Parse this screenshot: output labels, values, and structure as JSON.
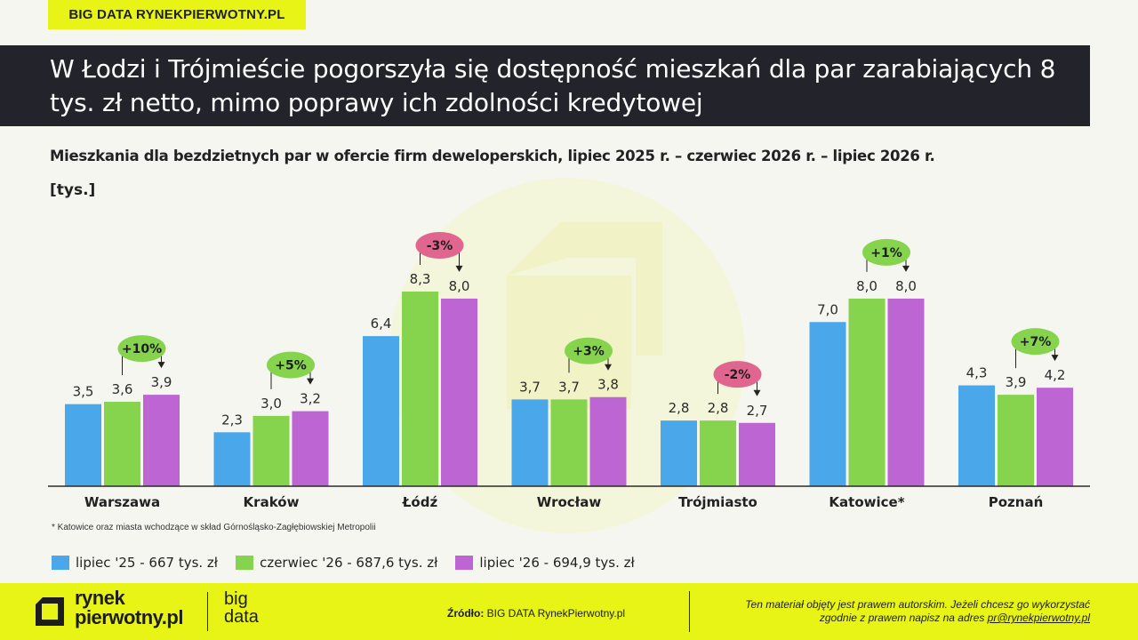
{
  "tag": "BIG DATA RYNEKPIERWOTNY.PL",
  "header": {
    "title": "W Łodzi i Trójmieście pogorszyła się dostępność mieszkań dla par zarabiających 8 tys. zł netto, mimo poprawy ich zdolności kredytowej"
  },
  "subtitle": "Mieszkania dla bezdzietnych par w ofercie firm deweloperskich, lipiec 2025 r. – czerwiec 2026 r. – lipiec 2026 r.",
  "unit": "[tys.]",
  "footnote": "* Katowice oraz miasta wchodzące w skład Górnośląsko-Zagłębiowskiej Metropolii",
  "colors": {
    "series1": "#4aa8ea",
    "series2": "#86d34e",
    "series3": "#bd66d3",
    "positive_badge": "#86d34e",
    "negative_badge": "#e0668f",
    "brand_yellow": "#e8f416",
    "header_bg": "#22232b"
  },
  "chart_data": {
    "type": "bar",
    "title": "Mieszkania dla bezdzietnych par w ofercie firm deweloperskich, lipiec 2025 r. – czerwiec 2026 r. – lipiec 2026 r.",
    "ylabel": "[tys.]",
    "ylim": [
      0,
      8.3
    ],
    "grid": false,
    "legend_position": "bottom-left",
    "categories": [
      "Warszawa",
      "Kraków",
      "Łódź",
      "Wrocław",
      "Trójmiasto",
      "Katowice*",
      "Poznań"
    ],
    "series": [
      {
        "name": "lipiec '25 - 667 tys. zł",
        "values": [
          3.5,
          2.3,
          6.4,
          3.7,
          2.8,
          7.0,
          4.3
        ],
        "labels": [
          "3,5",
          "2,3",
          "6,4",
          "3,7",
          "2,8",
          "7,0",
          "4,3"
        ]
      },
      {
        "name": "czerwiec '26 - 687,6 tys. zł",
        "values": [
          3.6,
          3.0,
          8.3,
          3.7,
          2.8,
          8.0,
          3.9
        ],
        "labels": [
          "3,6",
          "3,0",
          "8,3",
          "3,7",
          "2,8",
          "8,0",
          "3,9"
        ]
      },
      {
        "name": "lipiec '26 - 694,9 tys. zł",
        "values": [
          3.9,
          3.2,
          8.0,
          3.8,
          2.7,
          8.0,
          4.2
        ],
        "labels": [
          "3,9",
          "3,2",
          "8,0",
          "3,8",
          "2,7",
          "8,0",
          "4,2"
        ]
      }
    ],
    "changes": [
      "+10%",
      "+5%",
      "-3%",
      "+3%",
      "-2%",
      "+1%",
      "+7%"
    ],
    "change_sign": [
      "positive",
      "positive",
      "negative",
      "positive",
      "negative",
      "positive",
      "positive"
    ]
  },
  "footer": {
    "logo_line1": "rynek",
    "logo_line2": "pierwotny.pl",
    "bigdata_line1": "big",
    "bigdata_line2": "data",
    "source_label": "Źródło:",
    "source_value": " BIG DATA RynekPierwotny.pl",
    "rights_line1": "Ten materiał objęty jest prawem autorskim. Jeżeli chcesz go wykorzystać",
    "rights_line2": "zgodnie z prawem napisz na adres",
    "rights_email": "pr@rynekpierwotny.pl"
  }
}
